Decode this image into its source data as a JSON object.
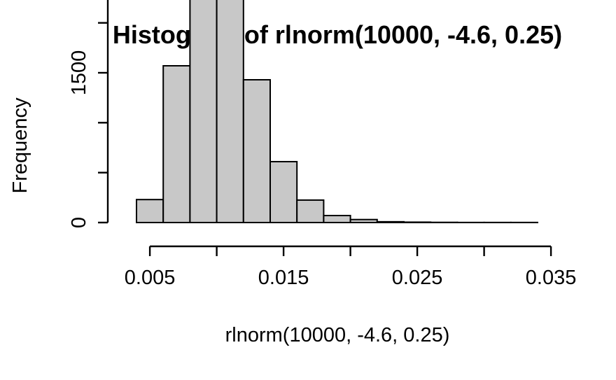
{
  "chart_data": {
    "type": "bar",
    "title": "Histogram of rlnorm(10000, -4.6, 0.25)",
    "xlabel": "rlnorm(10000, -4.6, 0.25)",
    "ylabel": "Frequency",
    "xlim": [
      0.004,
      0.034
    ],
    "ylim": [
      0,
      3000
    ],
    "x_ticks": [
      0.005,
      0.01,
      0.015,
      0.02,
      0.025,
      0.03,
      0.035
    ],
    "x_tick_labels": [
      "0.005",
      "",
      "0.015",
      "",
      "0.025",
      "",
      "0.035"
    ],
    "y_ticks": [
      0,
      500,
      1000,
      1500,
      2000,
      2500,
      3000
    ],
    "y_tick_labels": [
      "0",
      "",
      "",
      "1500",
      "",
      "",
      ""
    ],
    "bin_edges": [
      0.004,
      0.006,
      0.008,
      0.01,
      0.012,
      0.014,
      0.016,
      0.018,
      0.02,
      0.022,
      0.024,
      0.026,
      0.028,
      0.03,
      0.032,
      0.034
    ],
    "values": [
      230,
      1570,
      3110,
      2730,
      1430,
      610,
      225,
      70,
      30,
      8,
      4,
      2,
      1,
      1,
      1
    ],
    "bar_fill": "#c8c8c8",
    "bar_stroke": "#000000",
    "grid": false
  }
}
